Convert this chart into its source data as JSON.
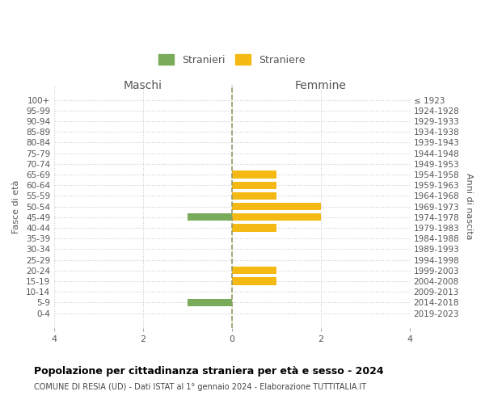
{
  "age_groups": [
    "100+",
    "95-99",
    "90-94",
    "85-89",
    "80-84",
    "75-79",
    "70-74",
    "65-69",
    "60-64",
    "55-59",
    "50-54",
    "45-49",
    "40-44",
    "35-39",
    "30-34",
    "25-29",
    "20-24",
    "15-19",
    "10-14",
    "5-9",
    "0-4"
  ],
  "birth_years": [
    "≤ 1923",
    "1924-1928",
    "1929-1933",
    "1934-1938",
    "1939-1943",
    "1944-1948",
    "1949-1953",
    "1954-1958",
    "1959-1963",
    "1964-1968",
    "1969-1973",
    "1974-1978",
    "1979-1983",
    "1984-1988",
    "1989-1993",
    "1994-1998",
    "1999-2003",
    "2004-2008",
    "2009-2013",
    "2014-2018",
    "2019-2023"
  ],
  "maschi": [
    0,
    0,
    0,
    0,
    0,
    0,
    0,
    0,
    0,
    0,
    0,
    1,
    0,
    0,
    0,
    0,
    0,
    0,
    0,
    1,
    0
  ],
  "femmine": [
    0,
    0,
    0,
    0,
    0,
    0,
    0,
    1,
    1,
    1,
    2,
    2,
    1,
    0,
    0,
    0,
    1,
    1,
    0,
    0,
    0
  ],
  "color_maschi": "#7aab5a",
  "color_femmine": "#f5b914",
  "color_grid": "#cccccc",
  "color_center_line": "#999966",
  "xlim": 4,
  "title": "Popolazione per cittadinanza straniera per età e sesso - 2024",
  "subtitle1": "COMUNE DI RESIA (UD) - Dati ISTAT al 1° gennaio 2024 - Elaborazione TUTTITALIA.IT",
  "legend_stranieri": "Stranieri",
  "legend_straniere": "Straniere",
  "label_maschi": "Maschi",
  "label_femmine": "Femmine",
  "label_fasce": "Fasce di età",
  "label_anni": "Anni di nascita",
  "bg_color": "#ffffff",
  "bar_height": 0.7
}
